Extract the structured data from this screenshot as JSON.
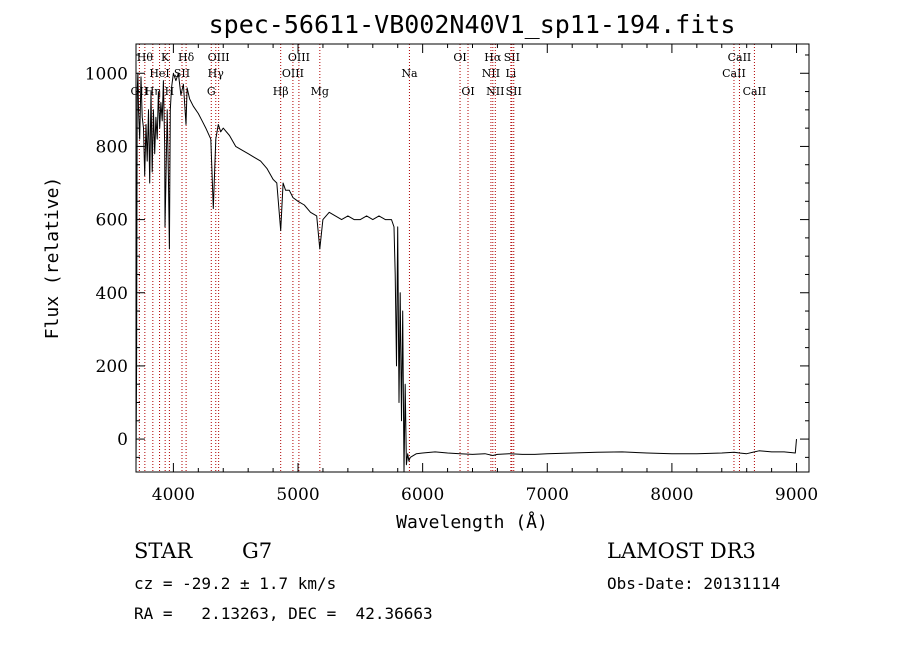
{
  "chart_data": {
    "type": "line",
    "title": "spec-56611-VB002N40V1_sp11-194.fits",
    "xlabel": "Wavelength (Å)",
    "ylabel": "Flux (relative)",
    "xlim": [
      3700,
      9100
    ],
    "ylim": [
      -90,
      1080
    ],
    "xticks": [
      4000,
      5000,
      6000,
      7000,
      8000,
      9000
    ],
    "yticks": [
      0,
      200,
      400,
      600,
      800,
      1000
    ],
    "grid": false,
    "series": [
      {
        "name": "flux",
        "x": [
          3700,
          3705,
          3710,
          3715,
          3720,
          3730,
          3740,
          3750,
          3760,
          3770,
          3780,
          3790,
          3800,
          3810,
          3820,
          3830,
          3840,
          3850,
          3860,
          3870,
          3880,
          3890,
          3900,
          3910,
          3920,
          3930,
          3933,
          3940,
          3950,
          3960,
          3968,
          3975,
          3985,
          4000,
          4020,
          4040,
          4060,
          4080,
          4101,
          4110,
          4130,
          4160,
          4200,
          4230,
          4260,
          4300,
          4320,
          4340,
          4360,
          4380,
          4400,
          4450,
          4500,
          4550,
          4600,
          4650,
          4700,
          4750,
          4800,
          4830,
          4861,
          4880,
          4900,
          4930,
          4960,
          5000,
          5050,
          5100,
          5150,
          5175,
          5200,
          5250,
          5300,
          5350,
          5400,
          5450,
          5500,
          5550,
          5600,
          5650,
          5700,
          5750,
          5770,
          5780,
          5790,
          5800,
          5810,
          5820,
          5830,
          5840,
          5850,
          5860,
          5870,
          5880,
          5890,
          5900,
          5950,
          6000,
          6100,
          6200,
          6300,
          6400,
          6500,
          6563,
          6600,
          6700,
          6800,
          6900,
          7000,
          7200,
          7400,
          7600,
          7800,
          8000,
          8200,
          8400,
          8500,
          8542,
          8600,
          8662,
          8700,
          8800,
          8900,
          8990,
          9000
        ],
        "values": [
          -80,
          200,
          950,
          1000,
          900,
          820,
          990,
          880,
          850,
          720,
          860,
          760,
          900,
          700,
          950,
          730,
          900,
          780,
          880,
          820,
          950,
          850,
          920,
          870,
          980,
          800,
          580,
          700,
          900,
          720,
          520,
          900,
          960,
          1000,
          980,
          1000,
          940,
          970,
          860,
          960,
          930,
          910,
          890,
          870,
          850,
          820,
          630,
          820,
          860,
          840,
          850,
          830,
          800,
          790,
          780,
          770,
          760,
          740,
          710,
          700,
          570,
          700,
          680,
          680,
          660,
          650,
          640,
          620,
          610,
          520,
          600,
          620,
          610,
          600,
          610,
          600,
          600,
          610,
          600,
          610,
          600,
          600,
          580,
          450,
          200,
          580,
          100,
          400,
          50,
          350,
          -90,
          150,
          -70,
          -40,
          -60,
          -50,
          -40,
          -38,
          -35,
          -38,
          -40,
          -42,
          -40,
          -45,
          -42,
          -40,
          -42,
          -42,
          -40,
          -38,
          -36,
          -35,
          -38,
          -40,
          -40,
          -38,
          -36,
          -38,
          -40,
          -35,
          -32,
          -35,
          -35,
          -38,
          0
        ]
      }
    ],
    "lines": [
      {
        "name": "OII",
        "x": 3727,
        "row": 3
      },
      {
        "name": "Hθ",
        "x": 3771,
        "row": 1
      },
      {
        "name": "Hη",
        "x": 3835,
        "row": 3
      },
      {
        "name": "HeI",
        "x": 3889,
        "row": 2
      },
      {
        "name": "K",
        "x": 3934,
        "row": 1
      },
      {
        "name": "H",
        "x": 3968,
        "row": 3
      },
      {
        "name": "SII",
        "x": 4069,
        "row": 2
      },
      {
        "name": "Hδ",
        "x": 4102,
        "row": 1
      },
      {
        "name": "G",
        "x": 4304,
        "row": 3
      },
      {
        "name": "Hγ",
        "x": 4340,
        "row": 2
      },
      {
        "name": "OIII",
        "x": 4363,
        "row": 1
      },
      {
        "name": "Hβ",
        "x": 4861,
        "row": 3
      },
      {
        "name": "OIII",
        "x": 4959,
        "row": 2
      },
      {
        "name": "OIII",
        "x": 5007,
        "row": 1
      },
      {
        "name": "Mg",
        "x": 5175,
        "row": 3
      },
      {
        "name": "Na",
        "x": 5894,
        "row": 2
      },
      {
        "name": "OI",
        "x": 6300,
        "row": 1
      },
      {
        "name": "OI",
        "x": 6364,
        "row": 3
      },
      {
        "name": "NII",
        "x": 6548,
        "row": 2
      },
      {
        "name": "Hα",
        "x": 6563,
        "row": 1
      },
      {
        "name": "NII",
        "x": 6583,
        "row": 3
      },
      {
        "name": "Li",
        "x": 6708,
        "row": 2
      },
      {
        "name": "SII",
        "x": 6716,
        "row": 1
      },
      {
        "name": "SII",
        "x": 6731,
        "row": 3
      },
      {
        "name": "CaII",
        "x": 8498,
        "row": 2
      },
      {
        "name": "CaII",
        "x": 8542,
        "row": 1
      },
      {
        "name": "CaII",
        "x": 8662,
        "row": 3
      }
    ]
  },
  "info": {
    "object_class": "STAR",
    "subclass": "G7",
    "survey": "LAMOST DR3",
    "cz": "cz = -29.2 ± 1.7 km/s",
    "obs_date": "Obs-Date: 20131114",
    "coords": "RA =   2.13263, DEC =  42.36663"
  },
  "colors": {
    "spectrum": "#000000",
    "line_markers": "#b00000",
    "text": "#000000"
  }
}
